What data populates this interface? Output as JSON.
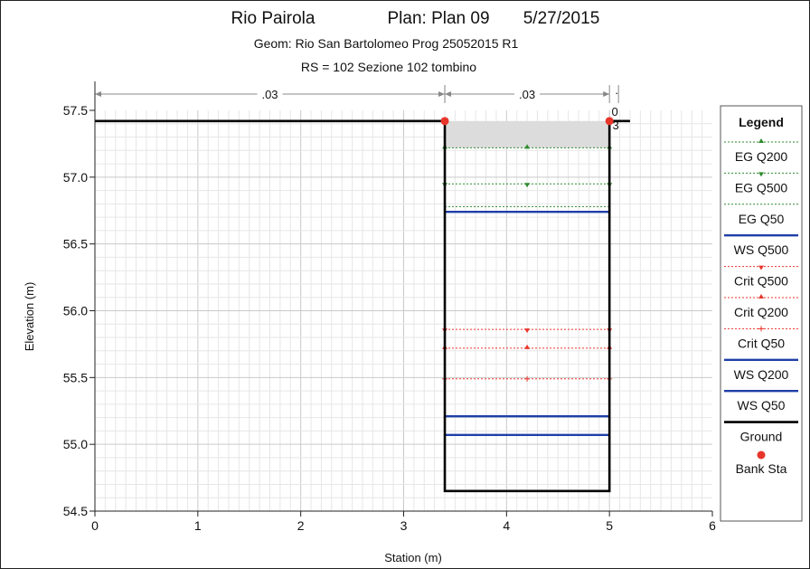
{
  "chart_data": {
    "type": "line",
    "title": "Rio Pairola",
    "plan": "Plan: Plan 09",
    "date": "5/27/2015",
    "subtitle_geom": "Geom: Rio San Bartolomeo Prog  25052015 R1",
    "subtitle_rs": "RS = 102  Sezione 102 tombino",
    "xlabel": "Station (m)",
    "ylabel": "Elevation (m)",
    "xlim": [
      0,
      6
    ],
    "ylim": [
      54.5,
      57.5
    ],
    "x_ticks": [
      "0",
      "1",
      "2",
      "3",
      "4",
      "5",
      "6"
    ],
    "y_ticks": [
      "54.5",
      "55.0",
      "55.5",
      "56.0",
      "56.5",
      "57.0",
      "57.5"
    ],
    "grid": true,
    "legend_position": "right",
    "mannings_n": [
      {
        "label": ".03",
        "x_start": 0,
        "x_end": 3.4
      },
      {
        "label": ".03",
        "x_start": 3.4,
        "x_end": 5.0
      },
      {
        "label": "0",
        "x_start": 5.0,
        "x_end": 5.08
      },
      {
        "label": ".",
        "x_start": 5.0,
        "x_end": 5.08
      },
      {
        "label": "3",
        "x_start": 5.0,
        "x_end": 5.08
      }
    ],
    "ground": {
      "name": "Ground",
      "color": "#000000",
      "points": [
        [
          0,
          57.42
        ],
        [
          3.4,
          57.42
        ],
        [
          3.4,
          54.65
        ],
        [
          5.0,
          54.65
        ],
        [
          5.0,
          57.42
        ],
        [
          5.2,
          57.42
        ]
      ]
    },
    "bank_stations": {
      "name": "Bank Sta",
      "color": "#e8352a",
      "points": [
        [
          3.4,
          57.42
        ],
        [
          5.0,
          57.42
        ]
      ]
    },
    "deck_fill": {
      "x": [
        3.4,
        5.0
      ],
      "y": [
        57.22,
        57.42
      ],
      "color": "#dcdcdc"
    },
    "series": [
      {
        "name": "EG Q200",
        "style": "dotted",
        "color": "#2e8b2e",
        "marker": "up",
        "values": [
          {
            "x": [
              3.4,
              5.0
            ],
            "y": 57.22
          }
        ]
      },
      {
        "name": "EG Q500",
        "style": "dotted",
        "color": "#2e8b2e",
        "marker": "down",
        "values": [
          {
            "x": [
              3.4,
              5.0
            ],
            "y": 56.95
          }
        ]
      },
      {
        "name": "EG Q50",
        "style": "dotted",
        "color": "#2e8b2e",
        "marker": "none",
        "values": [
          {
            "x": [
              3.4,
              5.0
            ],
            "y": 56.78
          }
        ]
      },
      {
        "name": "WS Q500",
        "style": "solid",
        "color": "#1f3fa6",
        "marker": "none",
        "values": [
          {
            "x": [
              3.4,
              5.0
            ],
            "y": 56.74
          }
        ]
      },
      {
        "name": "Crit Q500",
        "style": "dotted",
        "color": "#e8352a",
        "marker": "down",
        "values": [
          {
            "x": [
              3.4,
              5.0
            ],
            "y": 55.86
          }
        ]
      },
      {
        "name": "Crit Q200",
        "style": "dotted",
        "color": "#e8352a",
        "marker": "up",
        "values": [
          {
            "x": [
              3.4,
              5.0
            ],
            "y": 55.72
          }
        ]
      },
      {
        "name": "Crit Q50",
        "style": "dotted",
        "color": "#e8352a",
        "marker": "plus",
        "values": [
          {
            "x": [
              3.4,
              5.0
            ],
            "y": 55.49
          }
        ]
      },
      {
        "name": "WS Q200",
        "style": "solid",
        "color": "#1f3fa6",
        "marker": "none",
        "values": [
          {
            "x": [
              3.4,
              5.0
            ],
            "y": 55.21
          }
        ]
      },
      {
        "name": "WS Q50",
        "style": "solid",
        "color": "#1f3fa6",
        "marker": "none",
        "values": [
          {
            "x": [
              3.4,
              5.0
            ],
            "y": 55.07
          }
        ]
      }
    ],
    "legend": {
      "title": "Legend",
      "items": [
        {
          "label": "EG Q200",
          "kind": "dotted",
          "color": "#2e8b2e",
          "marker": "up"
        },
        {
          "label": "EG Q500",
          "kind": "dotted",
          "color": "#2e8b2e",
          "marker": "down"
        },
        {
          "label": "EG Q50",
          "kind": "dotted",
          "color": "#2e8b2e",
          "marker": "none"
        },
        {
          "label": "WS Q500",
          "kind": "solid",
          "color": "#1f3fa6",
          "marker": "none"
        },
        {
          "label": "Crit Q500",
          "kind": "dotted",
          "color": "#e8352a",
          "marker": "down"
        },
        {
          "label": "Crit Q200",
          "kind": "dotted",
          "color": "#e8352a",
          "marker": "up"
        },
        {
          "label": "Crit Q50",
          "kind": "dotted",
          "color": "#e8352a",
          "marker": "plus"
        },
        {
          "label": "WS Q200",
          "kind": "solid",
          "color": "#1f3fa6",
          "marker": "none"
        },
        {
          "label": "WS Q50",
          "kind": "solid",
          "color": "#1f3fa6",
          "marker": "none"
        },
        {
          "label": "Ground",
          "kind": "solid-thick",
          "color": "#000000",
          "marker": "none"
        },
        {
          "label": "Bank Sta",
          "kind": "dot",
          "color": "#e8352a",
          "marker": "dot"
        }
      ]
    }
  }
}
